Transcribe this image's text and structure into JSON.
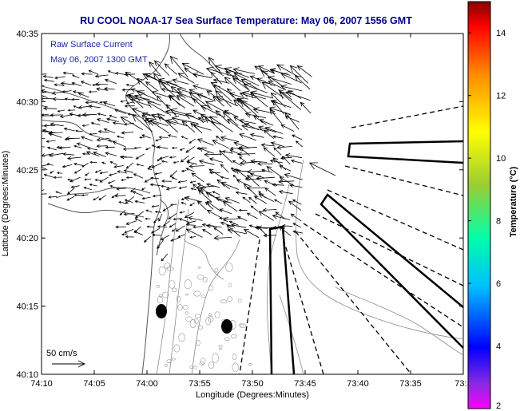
{
  "title": "RU COOL  NOAA-17  Sea Surface Temperature:  May 06, 2007 1556 GMT",
  "inset": {
    "line1": "Raw Surface Current",
    "line2": "May 06, 2007 1300 GMT"
  },
  "scale_label": "50 cm/s",
  "chart_data": {
    "type": "map",
    "xlabel": "Longitude (Degrees:Minutes)",
    "ylabel": "Latitude (Degrees:Minutes)",
    "x_ticks": [
      "74:10",
      "74:05",
      "74:00",
      "73:55",
      "73:50",
      "73:45",
      "73:40",
      "73:35",
      "73:3"
    ],
    "y_ticks": [
      "40:35",
      "40:30",
      "40:25",
      "40:20",
      "40:15",
      "40:10"
    ],
    "colorbar": {
      "label": "Temperature (°C)",
      "range": [
        2,
        15
      ],
      "ticks": [
        "14",
        "12",
        "10",
        "8",
        "6",
        "4",
        "2"
      ]
    },
    "grid": false
  },
  "colors": {
    "title": "#00008b",
    "inset_text": "#1a2a9c",
    "coastline": "#555555",
    "contours": "#8c8c8c",
    "vectors": "#000000"
  }
}
